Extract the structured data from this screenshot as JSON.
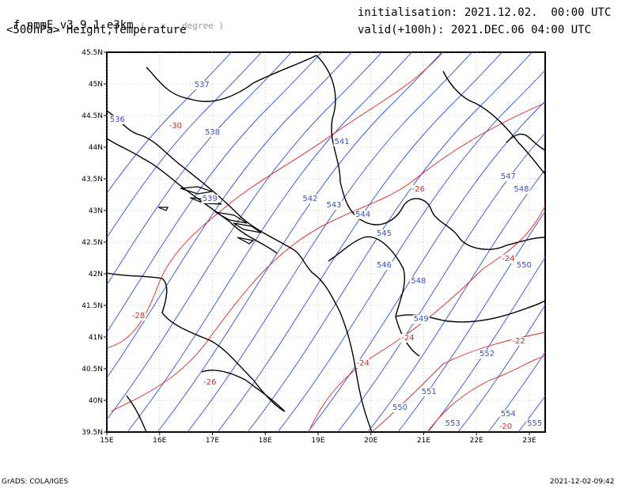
{
  "header": {
    "model": "f-nmmE_v3.9.1-e3km",
    "units": "( . x . degree )",
    "initialisation": "initialisation: 2021.12.02.  00:00 UTC",
    "field": "<500hPa> Height,Temperature",
    "valid": "valid(+100h): 2021.DEC.06 04:00 UTC"
  },
  "footer": {
    "left": "GrADS: COLA/IGES",
    "right": "2021-12-02-09:42"
  },
  "colors": {
    "height": "#3050e0",
    "temperature": "#e02020",
    "coast": "#000000",
    "grid": "#999999"
  },
  "axes": {
    "lon_ticks": [
      "15E",
      "16E",
      "17E",
      "18E",
      "19E",
      "20E",
      "21E",
      "22E",
      "23E"
    ],
    "lat_ticks": [
      "39.5N",
      "40N",
      "40.5N",
      "41N",
      "41.5N",
      "42N",
      "42.5N",
      "43N",
      "43.5N",
      "44N",
      "44.5N",
      "45N",
      "45.5N"
    ]
  },
  "height_labels": [
    {
      "text": "536",
      "lon": 15.2,
      "lat": 44.4
    },
    {
      "text": "537",
      "lon": 16.8,
      "lat": 44.95
    },
    {
      "text": "538",
      "lon": 17.0,
      "lat": 44.2
    },
    {
      "text": "539",
      "lon": 16.95,
      "lat": 43.15
    },
    {
      "text": "541",
      "lon": 19.45,
      "lat": 44.05
    },
    {
      "text": "542",
      "lon": 18.85,
      "lat": 43.15
    },
    {
      "text": "543",
      "lon": 19.3,
      "lat": 43.05
    },
    {
      "text": "544",
      "lon": 19.85,
      "lat": 42.9
    },
    {
      "text": "545",
      "lon": 20.25,
      "lat": 42.6
    },
    {
      "text": "546",
      "lon": 20.25,
      "lat": 42.1
    },
    {
      "text": "547",
      "lon": 22.6,
      "lat": 43.5
    },
    {
      "text": "548",
      "lon": 22.85,
      "lat": 43.3
    },
    {
      "text": "548",
      "lon": 20.9,
      "lat": 41.85
    },
    {
      "text": "549",
      "lon": 20.95,
      "lat": 41.25
    },
    {
      "text": "550",
      "lon": 22.9,
      "lat": 42.1
    },
    {
      "text": "550",
      "lon": 20.55,
      "lat": 39.85
    },
    {
      "text": "551",
      "lon": 21.1,
      "lat": 40.1
    },
    {
      "text": "552",
      "lon": 22.2,
      "lat": 40.7
    },
    {
      "text": "553",
      "lon": 21.55,
      "lat": 39.6
    },
    {
      "text": "554",
      "lon": 22.6,
      "lat": 39.75
    },
    {
      "text": "555",
      "lon": 23.1,
      "lat": 39.6
    }
  ],
  "temperature_labels": [
    {
      "text": "-30",
      "lon": 16.3,
      "lat": 44.3
    },
    {
      "text": "-26",
      "lon": 20.9,
      "lat": 43.3
    },
    {
      "text": "-28",
      "lon": 15.6,
      "lat": 41.3
    },
    {
      "text": "-24",
      "lon": 22.6,
      "lat": 42.2
    },
    {
      "text": "-24",
      "lon": 20.7,
      "lat": 40.95
    },
    {
      "text": "-24",
      "lon": 19.85,
      "lat": 40.55
    },
    {
      "text": "-26",
      "lon": 16.95,
      "lat": 40.25
    },
    {
      "text": "-22",
      "lon": 22.8,
      "lat": 40.9
    },
    {
      "text": "-20",
      "lon": 22.55,
      "lat": 39.55
    }
  ]
}
